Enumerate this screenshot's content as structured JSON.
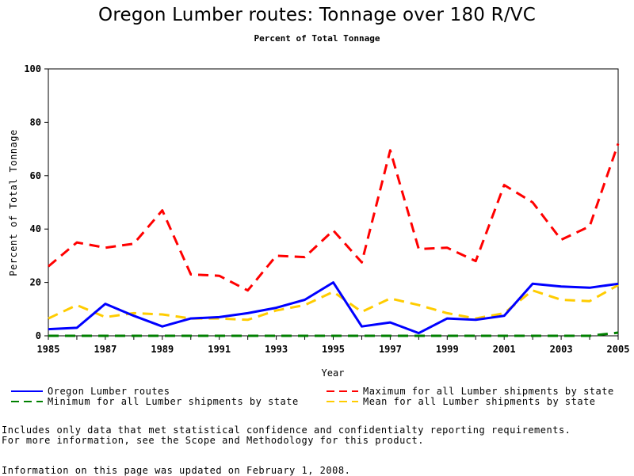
{
  "chart_data": {
    "type": "line",
    "title": "Oregon Lumber routes: Tonnage over 180 R/VC",
    "subtitle": "Percent of Total Tonnage",
    "xlabel": "Year",
    "ylabel": "Percent of Total Tonnage",
    "xlim": [
      1985,
      2005
    ],
    "ylim": [
      0,
      100
    ],
    "xticks": [
      "1985",
      "1987",
      "1989",
      "1991",
      "1993",
      "1995",
      "1997",
      "1999",
      "2001",
      "2003",
      "2005"
    ],
    "yticks": [
      "0",
      "20",
      "40",
      "60",
      "80",
      "100"
    ],
    "grid": false,
    "legend_position": "bottom",
    "x": [
      1985,
      1986,
      1987,
      1988,
      1989,
      1990,
      1991,
      1992,
      1993,
      1994,
      1995,
      1996,
      1997,
      1998,
      1999,
      2000,
      2001,
      2002,
      2003,
      2004,
      2005
    ],
    "series": [
      {
        "name": "Oregon Lumber routes",
        "color": "#0000ff",
        "style": "solid",
        "values": [
          2.5,
          3.0,
          12.0,
          7.5,
          3.5,
          6.5,
          7.0,
          8.5,
          10.5,
          13.5,
          20.0,
          3.5,
          5.0,
          1.0,
          6.5,
          6.0,
          7.5,
          19.5,
          18.5,
          18.0,
          19.5
        ]
      },
      {
        "name": "Maximum for all Lumber shipments by state",
        "color": "#ff0000",
        "style": "dashed",
        "values": [
          26.0,
          35.0,
          33.0,
          34.5,
          47.0,
          23.0,
          22.5,
          17.0,
          30.0,
          29.5,
          39.5,
          27.5,
          69.5,
          32.5,
          33.0,
          28.0,
          56.5,
          50.0,
          36.0,
          41.0,
          72.0
        ]
      },
      {
        "name": "Minimum for all Lumber shipments by state",
        "color": "#008000",
        "style": "dashed",
        "values": [
          0,
          0,
          0,
          0,
          0,
          0,
          0,
          0,
          0,
          0,
          0,
          0,
          0,
          0,
          0,
          0,
          0,
          0,
          0,
          0,
          1.2
        ]
      },
      {
        "name": "Mean for all Lumber shipments by state",
        "color": "#ffcc00",
        "style": "dashed",
        "values": [
          6.5,
          11.5,
          7.0,
          8.5,
          8.0,
          6.5,
          6.5,
          6.0,
          9.5,
          11.5,
          16.5,
          9.0,
          14.0,
          11.5,
          8.5,
          6.5,
          8.5,
          17.0,
          13.5,
          13.0,
          19.0
        ]
      }
    ]
  },
  "footnotes": {
    "line1": "Includes only data that met statistical confidence and confidentialty reporting requirements.",
    "line2": "For more information, see the Scope and Methodology for this product.",
    "line3": "Information on this page was updated on February 1, 2008."
  }
}
